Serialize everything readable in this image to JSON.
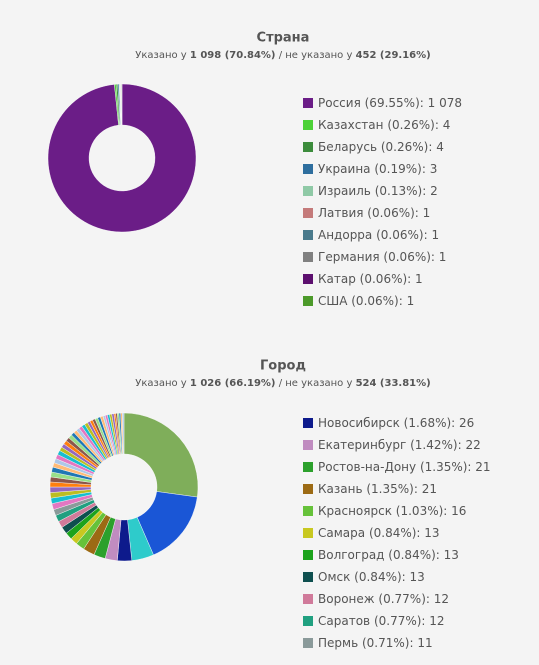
{
  "chart_data": [
    {
      "type": "pie",
      "title": "Страна",
      "subtitle": {
        "prefix": "Указано у",
        "specified": "1 098 (70.84%)",
        "middle": "/ не указано у",
        "unspecified": "452 (29.16%)"
      },
      "categories": [
        "Россия",
        "Казахстан",
        "Беларусь",
        "Украина",
        "Израиль",
        "Латвия",
        "Андорра",
        "Германия",
        "Катар",
        "США"
      ],
      "percent_labels": [
        "(69.55%):",
        "(0.26%):",
        "(0.26%):",
        "(0.19%):",
        "(0.13%):",
        "(0.06%):",
        "(0.06%):",
        "(0.06%):",
        "(0.06%):",
        "(0.06%):"
      ],
      "values": [
        1078,
        4,
        4,
        3,
        2,
        1,
        1,
        1,
        1,
        1
      ],
      "value_labels": [
        "1 078",
        "4",
        "4",
        "3",
        "2",
        "1",
        "1",
        "1",
        "1",
        "1"
      ],
      "colors": [
        "#6b1d87",
        "#4cd137",
        "#3c8c3c",
        "#2e6e9e",
        "#8fc9a6",
        "#c47a7a",
        "#4a7a8c",
        "#808080",
        "#5c0f6e",
        "#4c9a2a"
      ]
    },
    {
      "type": "pie",
      "title": "Город",
      "subtitle": {
        "prefix": "Указано у",
        "specified": "1 026 (66.19%)",
        "middle": "/ не указано у",
        "unspecified": "524 (33.81%)"
      },
      "categories": [
        null,
        null,
        null,
        "Новосибирск",
        "Екатеринбург",
        "Ростов-на-Дону",
        "Казань",
        "Красноярск",
        "Самара",
        "Волгоград",
        "Омск",
        "Воронеж",
        "Саратов",
        "Пермь",
        null,
        null,
        null,
        null,
        null,
        null,
        null,
        null,
        null,
        null,
        null,
        null,
        null,
        null,
        null,
        null,
        null,
        null,
        null,
        null,
        null,
        null,
        null,
        null,
        null,
        null,
        null,
        null,
        null,
        null,
        null,
        null,
        null,
        null,
        null,
        null,
        null,
        null,
        null,
        null
      ],
      "percent_labels": [
        null,
        null,
        null,
        "(1.68%):",
        "(1.42%):",
        "(1.35%):",
        "(1.35%):",
        "(1.03%):",
        "(0.84%):",
        "(0.84%):",
        "(0.84%):",
        "(0.77%):",
        "(0.77%):",
        "(0.71%):",
        null,
        null,
        null,
        null,
        null,
        null,
        null,
        null,
        null,
        null,
        null,
        null,
        null,
        null,
        null,
        null,
        null,
        null,
        null,
        null,
        null,
        null,
        null,
        null,
        null,
        null,
        null,
        null,
        null,
        null,
        null,
        null,
        null,
        null,
        null,
        null,
        null,
        null,
        null,
        null
      ],
      "values": [
        225,
        135,
        40,
        26,
        22,
        21,
        21,
        16,
        13,
        13,
        13,
        12,
        12,
        11,
        11,
        10,
        10,
        10,
        9,
        9,
        9,
        9,
        8,
        8,
        8,
        8,
        7,
        7,
        7,
        7,
        7,
        6,
        6,
        6,
        6,
        6,
        6,
        5,
        5,
        5,
        5,
        5,
        5,
        4,
        4,
        4,
        4,
        4,
        3,
        3,
        3,
        3,
        3,
        3
      ],
      "value_labels": [
        null,
        null,
        null,
        "26",
        "22",
        "21",
        "21",
        "16",
        "13",
        "13",
        "13",
        "12",
        "12",
        "11",
        null,
        null,
        null,
        null,
        null,
        null,
        null,
        null,
        null,
        null,
        null,
        null,
        null,
        null,
        null,
        null,
        null,
        null,
        null,
        null,
        null,
        null,
        null,
        null,
        null,
        null,
        null,
        null,
        null,
        null,
        null,
        null,
        null,
        null,
        null,
        null,
        null,
        null,
        null,
        null
      ],
      "colors": [
        "#7fae5a",
        "#1a56d6",
        "#2ecbcb",
        "#0d1a8c",
        "#c08cc0",
        "#2ca02c",
        "#9c6a14",
        "#66c23a",
        "#c8c820",
        "#1ca31c",
        "#0e4f4f",
        "#d07a9a",
        "#20a080",
        "#8a9a9a",
        "#e377c2",
        "#17becf",
        "#bcbd22",
        "#9467bd",
        "#ff7f0e",
        "#8c564b",
        "#98df8a",
        "#1f77b4",
        "#ffbb78",
        "#aec7e8",
        "#e377c2",
        "#17becf",
        "#bcbd22",
        "#9467bd",
        "#ff7f0e",
        "#8c564b",
        "#98df8a",
        "#1f77b4",
        "#ffbb78",
        "#aec7e8",
        "#e377c2",
        "#17becf",
        "#bcbd22",
        "#9467bd",
        "#ff7f0e",
        "#8c564b",
        "#98df8a",
        "#1f77b4",
        "#ffbb78",
        "#aec7e8",
        "#e377c2",
        "#17becf",
        "#bcbd22",
        "#9467bd",
        "#ff7f0e",
        "#8c564b",
        "#98df8a",
        "#1f77b4",
        "#ffbb78",
        "#aec7e8"
      ]
    }
  ]
}
